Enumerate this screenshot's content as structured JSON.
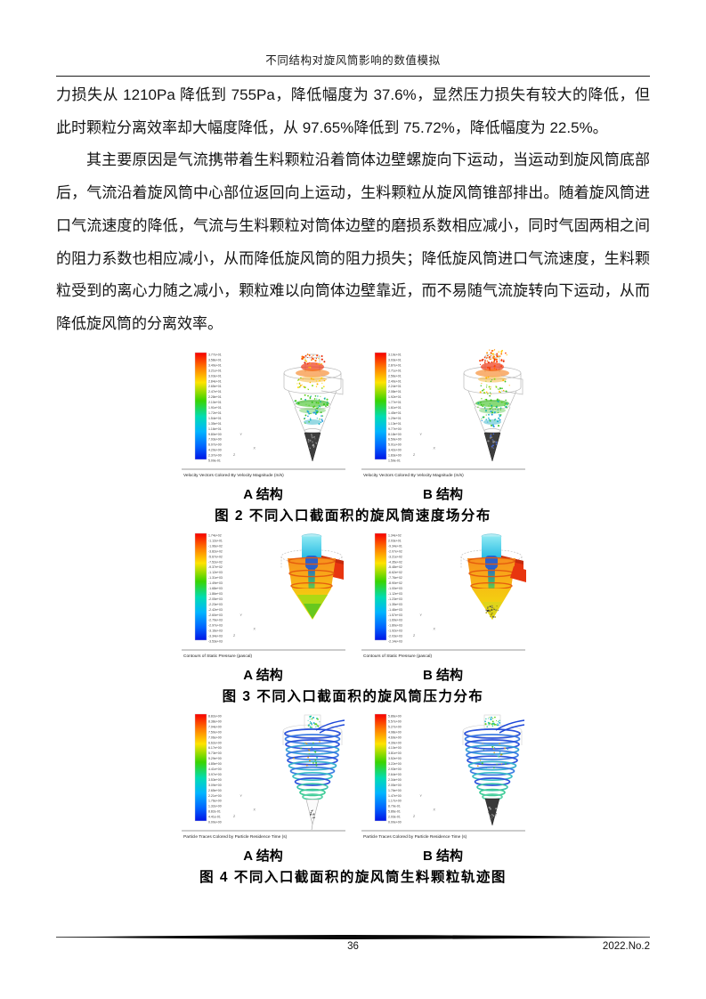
{
  "page": {
    "header_title": "不同结构对旋风筒影响的数值模拟",
    "footer": {
      "page_number": "36",
      "issue": "2022.No.2"
    }
  },
  "body": {
    "paragraph1": "力损失从 1210Pa 降低到 755Pa，降低幅度为 37.6%，显然压力损失有较大的降低，但此时颗粒分离效率却大幅度降低，从 97.65%降低到 75.72%，降低幅度为 22.5%。",
    "paragraph2": "其主要原因是气流携带着生料颗粒沿着筒体边壁螺旋向下运动，当运动到旋风筒底部后，气流沿着旋风筒中心部位返回向上运动，生料颗粒从旋风筒锥部排出。随着旋风筒进口气流速度的降低，气流与生料颗粒对筒体边壁的磨损系数相应减小，同时气固两相之间的阻力系数也相应减小，从而降低旋风筒的阻力损失；降低旋风筒进口气流速度，生料颗粒受到的离心力随之减小，颗粒难以向筒体边壁靠近，而不易随气流旋转向下运动，从而降低旋风筒的分离效率。"
  },
  "axes": {
    "vertical": "Y",
    "horizontal": "X",
    "depth": "Z"
  },
  "colors": {
    "colorbar_gradient": [
      "#f70000",
      "#ff7a00",
      "#ffe400",
      "#38d400",
      "#00dcb4",
      "#00b4ff",
      "#0014e6"
    ],
    "inlet_red": "#e8350f",
    "body_orange": "#f79420",
    "outlet_cyan": "#3cc8e8"
  },
  "figures": [
    {
      "caption": "图 2  不同入口截面积的旋风筒速度场分布",
      "panels": [
        {
          "label": "A 结构",
          "tool_caption": "Velocity Vectors Colored By Velocity Magnitude (m/s)",
          "ticks": [
            "3.77e+01",
            "3.58e+01",
            "3.40e+01",
            "3.21e+01",
            "3.03e+01",
            "2.84e+01",
            "2.65e+01",
            "2.47e+01",
            "2.28e+01",
            "2.10e+01",
            "1.91e+01",
            "1.72e+01",
            "1.54e+01",
            "1.35e+01",
            "1.16e+01",
            "9.80e+00",
            "7.93e+00",
            "6.07e+00",
            "4.20e+00",
            "2.37e+00",
            "5.09e-01"
          ]
        },
        {
          "label": "B 结构",
          "tool_caption": "Velocity Vectors Colored By Velocity Magnitude (m/s)",
          "ticks": [
            "3.19e+01",
            "3.03e+01",
            "2.87e+01",
            "2.71e+01",
            "2.56e+01",
            "2.40e+01",
            "2.24e+01",
            "2.08e+01",
            "1.92e+01",
            "1.77e+01",
            "1.61e+01",
            "1.45e+01",
            "1.29e+01",
            "1.13e+01",
            "9.77e+00",
            "8.18e+00",
            "6.59e+00",
            "5.01e+00",
            "3.42e+00",
            "1.83e+00",
            "1.59e-01"
          ]
        }
      ]
    },
    {
      "caption": "图 3  不同入口截面积的旋风筒压力分布",
      "panels": [
        {
          "label": "A 结构",
          "tool_caption": "Contours of Static Pressure (pascal)",
          "ticks": [
            "1.74e+02",
            "-1.12e+01",
            "-1.96e+02",
            "-3.82e+02",
            "-5.67e+02",
            "-7.52e+02",
            "-9.37e+02",
            "-1.12e+03",
            "-1.31e+03",
            "-1.49e+03",
            "-1.68e+03",
            "-1.86e+03",
            "-2.05e+03",
            "-2.23e+03",
            "-2.42e+03",
            "-2.60e+03",
            "-2.79e+03",
            "-2.97e+03",
            "-3.16e+03",
            "-3.34e+03",
            "-3.53e+03"
          ]
        },
        {
          "label": "B 结构",
          "tool_caption": "Contours of Static Pressure (pascal)",
          "ticks": [
            "1.34e+02",
            "2.03e+01",
            "-9.34e+01",
            "-2.07e+02",
            "-3.21e+02",
            "-4.35e+02",
            "-5.48e+02",
            "-6.62e+02",
            "-7.76e+02",
            "-8.90e+02",
            "-1.00e+03",
            "-1.12e+03",
            "-1.23e+03",
            "-1.35e+03",
            "-1.46e+03",
            "-1.57e+03",
            "-1.69e+03",
            "-1.80e+03",
            "-1.92e+03",
            "-2.03e+03",
            "-2.14e+03"
          ]
        }
      ]
    },
    {
      "caption": "图 4  不同入口截面积的旋风筒生料颗粒轨迹图",
      "panels": [
        {
          "label": "A 结构",
          "tool_caption": "Particle Traces Colored by Particle Residence Time (s)",
          "ticks": [
            "8.82e+00",
            "8.38e+00",
            "7.94e+00",
            "7.50e+00",
            "7.06e+00",
            "6.62e+00",
            "6.17e+00",
            "5.73e+00",
            "5.29e+00",
            "4.85e+00",
            "4.41e+00",
            "3.97e+00",
            "3.53e+00",
            "3.09e+00",
            "2.65e+00",
            "2.21e+00",
            "1.76e+00",
            "1.32e+00",
            "8.82e-01",
            "4.41e-01",
            "0.00e+00"
          ]
        },
        {
          "label": "B 结构",
          "tool_caption": "Particle Traces Colored by Particle Residence Time (s)",
          "ticks": [
            "5.86e+00",
            "5.57e+00",
            "5.27e+00",
            "4.98e+00",
            "4.69e+00",
            "4.39e+00",
            "4.10e+00",
            "3.81e+00",
            "3.52e+00",
            "3.22e+00",
            "2.93e+00",
            "2.64e+00",
            "2.34e+00",
            "2.05e+00",
            "1.76e+00",
            "1.47e+00",
            "1.17e+00",
            "8.79e-01",
            "5.86e-01",
            "2.93e-01",
            "0.00e+00"
          ]
        }
      ]
    }
  ]
}
